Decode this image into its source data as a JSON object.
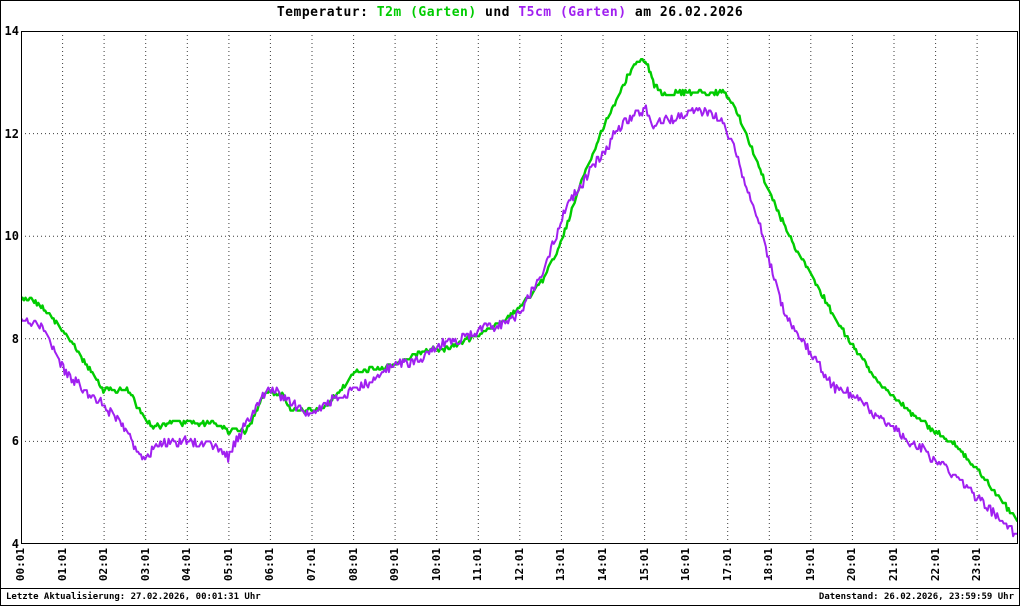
{
  "title": {
    "prefix": "Temperatur: ",
    "series1": "T2m (Garten)",
    "middle": " und ",
    "series2": "T5cm (Garten)",
    "suffix": " am 26.02.2026"
  },
  "footer": {
    "left": "Letzte Aktualisierung: 27.02.2026, 00:01:31 Uhr",
    "right": "Datenstand: 26.02.2026, 23:59:59 Uhr"
  },
  "colors": {
    "t2m": "#00cc00",
    "t5cm": "#a020f0",
    "grid": "#3c3c3c",
    "frame": "#000000",
    "background": "#ffffff"
  },
  "chart_data": {
    "type": "line",
    "title": "Temperatur: T2m (Garten) und T5cm (Garten) am 26.02.2026",
    "xlabel": "",
    "ylabel": "",
    "grid": "dotted",
    "legend_position": "in-title",
    "ylim": [
      4,
      14
    ],
    "xlim_hours": [
      0.0167,
      24
    ],
    "yticks": [
      4,
      6,
      8,
      10,
      12,
      14
    ],
    "xticks": [
      "00:01",
      "01:01",
      "02:01",
      "03:01",
      "04:01",
      "05:01",
      "06:01",
      "07:01",
      "08:01",
      "09:01",
      "10:01",
      "11:01",
      "12:01",
      "13:01",
      "14:01",
      "15:01",
      "16:01",
      "17:01",
      "18:01",
      "19:01",
      "20:01",
      "21:01",
      "22:01",
      "23:01"
    ],
    "x_unit": "hours",
    "y_unit": "degC",
    "series": [
      {
        "name": "T2m (Garten)",
        "color": "#00cc00",
        "width": 2.4,
        "noise": 0.045,
        "points": [
          [
            0.02,
            8.8
          ],
          [
            0.3,
            8.75
          ],
          [
            0.6,
            8.55
          ],
          [
            0.9,
            8.3
          ],
          [
            1.2,
            8.0
          ],
          [
            1.5,
            7.6
          ],
          [
            1.8,
            7.25
          ],
          [
            2.0,
            7.0
          ],
          [
            2.3,
            7.0
          ],
          [
            2.6,
            7.0
          ],
          [
            2.8,
            6.7
          ],
          [
            3.0,
            6.4
          ],
          [
            3.2,
            6.3
          ],
          [
            3.5,
            6.3
          ],
          [
            3.7,
            6.4
          ],
          [
            3.9,
            6.35
          ],
          [
            4.1,
            6.4
          ],
          [
            4.3,
            6.3
          ],
          [
            4.5,
            6.4
          ],
          [
            4.7,
            6.35
          ],
          [
            5.0,
            6.2
          ],
          [
            5.2,
            6.2
          ],
          [
            5.4,
            6.2
          ],
          [
            5.6,
            6.45
          ],
          [
            5.8,
            6.8
          ],
          [
            6.0,
            7.0
          ],
          [
            6.1,
            6.95
          ],
          [
            6.3,
            6.9
          ],
          [
            6.5,
            6.65
          ],
          [
            6.8,
            6.6
          ],
          [
            7.0,
            6.6
          ],
          [
            7.3,
            6.65
          ],
          [
            7.6,
            6.9
          ],
          [
            7.9,
            7.2
          ],
          [
            8.1,
            7.35
          ],
          [
            8.4,
            7.4
          ],
          [
            8.7,
            7.45
          ],
          [
            9.0,
            7.5
          ],
          [
            9.3,
            7.6
          ],
          [
            9.6,
            7.75
          ],
          [
            9.9,
            7.8
          ],
          [
            10.2,
            7.8
          ],
          [
            10.5,
            7.9
          ],
          [
            10.8,
            8.0
          ],
          [
            11.1,
            8.1
          ],
          [
            11.4,
            8.25
          ],
          [
            11.7,
            8.4
          ],
          [
            12.0,
            8.6
          ],
          [
            12.3,
            8.85
          ],
          [
            12.6,
            9.2
          ],
          [
            12.9,
            9.7
          ],
          [
            13.1,
            10.1
          ],
          [
            13.3,
            10.6
          ],
          [
            13.5,
            11.05
          ],
          [
            13.7,
            11.45
          ],
          [
            13.9,
            11.9
          ],
          [
            14.1,
            12.25
          ],
          [
            14.3,
            12.6
          ],
          [
            14.5,
            12.95
          ],
          [
            14.7,
            13.25
          ],
          [
            14.9,
            13.4
          ],
          [
            15.0,
            13.45
          ],
          [
            15.1,
            13.3
          ],
          [
            15.25,
            12.95
          ],
          [
            15.4,
            12.8
          ],
          [
            15.6,
            12.75
          ],
          [
            15.8,
            12.8
          ],
          [
            16.0,
            12.8
          ],
          [
            16.3,
            12.8
          ],
          [
            16.6,
            12.8
          ],
          [
            16.9,
            12.8
          ],
          [
            17.1,
            12.65
          ],
          [
            17.3,
            12.3
          ],
          [
            17.5,
            11.9
          ],
          [
            17.7,
            11.5
          ],
          [
            18.0,
            10.9
          ],
          [
            18.3,
            10.35
          ],
          [
            18.6,
            9.85
          ],
          [
            19.0,
            9.3
          ],
          [
            19.3,
            8.85
          ],
          [
            19.6,
            8.4
          ],
          [
            20.0,
            7.9
          ],
          [
            20.3,
            7.55
          ],
          [
            20.6,
            7.2
          ],
          [
            21.0,
            6.85
          ],
          [
            21.3,
            6.65
          ],
          [
            21.6,
            6.45
          ],
          [
            22.0,
            6.2
          ],
          [
            22.3,
            6.05
          ],
          [
            22.6,
            5.85
          ],
          [
            23.0,
            5.45
          ],
          [
            23.3,
            5.15
          ],
          [
            23.6,
            4.85
          ],
          [
            23.98,
            4.45
          ]
        ]
      },
      {
        "name": "T5cm (Garten)",
        "color": "#a020f0",
        "width": 2.0,
        "noise": 0.09,
        "points": [
          [
            0.02,
            8.35
          ],
          [
            0.3,
            8.3
          ],
          [
            0.5,
            8.25
          ],
          [
            0.7,
            7.95
          ],
          [
            0.9,
            7.6
          ],
          [
            1.1,
            7.35
          ],
          [
            1.4,
            7.1
          ],
          [
            1.7,
            6.9
          ],
          [
            2.0,
            6.7
          ],
          [
            2.3,
            6.5
          ],
          [
            2.6,
            6.15
          ],
          [
            2.8,
            5.8
          ],
          [
            3.0,
            5.65
          ],
          [
            3.2,
            5.85
          ],
          [
            3.4,
            5.95
          ],
          [
            3.7,
            6.0
          ],
          [
            4.0,
            6.0
          ],
          [
            4.3,
            5.95
          ],
          [
            4.6,
            5.95
          ],
          [
            4.8,
            5.8
          ],
          [
            5.0,
            5.7
          ],
          [
            5.2,
            6.0
          ],
          [
            5.4,
            6.3
          ],
          [
            5.6,
            6.55
          ],
          [
            5.8,
            6.85
          ],
          [
            6.0,
            7.0
          ],
          [
            6.2,
            6.95
          ],
          [
            6.4,
            6.8
          ],
          [
            6.6,
            6.7
          ],
          [
            6.8,
            6.6
          ],
          [
            7.0,
            6.6
          ],
          [
            7.3,
            6.7
          ],
          [
            7.6,
            6.85
          ],
          [
            7.9,
            6.95
          ],
          [
            8.2,
            7.1
          ],
          [
            8.5,
            7.2
          ],
          [
            8.8,
            7.4
          ],
          [
            9.1,
            7.5
          ],
          [
            9.4,
            7.55
          ],
          [
            9.7,
            7.65
          ],
          [
            10.0,
            7.85
          ],
          [
            10.3,
            7.95
          ],
          [
            10.6,
            8.0
          ],
          [
            10.9,
            8.1
          ],
          [
            11.2,
            8.25
          ],
          [
            11.4,
            8.2
          ],
          [
            11.7,
            8.35
          ],
          [
            12.0,
            8.5
          ],
          [
            12.3,
            8.9
          ],
          [
            12.6,
            9.4
          ],
          [
            12.9,
            10.0
          ],
          [
            13.1,
            10.5
          ],
          [
            13.3,
            10.8
          ],
          [
            13.5,
            11.0
          ],
          [
            13.7,
            11.3
          ],
          [
            13.9,
            11.5
          ],
          [
            14.1,
            11.7
          ],
          [
            14.3,
            12.0
          ],
          [
            14.5,
            12.2
          ],
          [
            14.7,
            12.3
          ],
          [
            14.9,
            12.4
          ],
          [
            15.05,
            12.45
          ],
          [
            15.2,
            12.1
          ],
          [
            15.35,
            12.25
          ],
          [
            15.5,
            12.3
          ],
          [
            15.7,
            12.25
          ],
          [
            15.9,
            12.35
          ],
          [
            16.1,
            12.4
          ],
          [
            16.3,
            12.45
          ],
          [
            16.5,
            12.4
          ],
          [
            16.7,
            12.35
          ],
          [
            16.9,
            12.2
          ],
          [
            17.1,
            11.9
          ],
          [
            17.3,
            11.4
          ],
          [
            17.5,
            10.9
          ],
          [
            17.7,
            10.4
          ],
          [
            17.9,
            9.9
          ],
          [
            18.1,
            9.3
          ],
          [
            18.3,
            8.7
          ],
          [
            18.5,
            8.3
          ],
          [
            18.7,
            8.1
          ],
          [
            19.0,
            7.75
          ],
          [
            19.3,
            7.35
          ],
          [
            19.6,
            7.05
          ],
          [
            19.9,
            6.95
          ],
          [
            20.2,
            6.8
          ],
          [
            20.5,
            6.55
          ],
          [
            20.8,
            6.35
          ],
          [
            21.1,
            6.2
          ],
          [
            21.4,
            6.0
          ],
          [
            21.7,
            5.85
          ],
          [
            22.0,
            5.6
          ],
          [
            22.3,
            5.45
          ],
          [
            22.6,
            5.25
          ],
          [
            22.9,
            5.0
          ],
          [
            23.2,
            4.75
          ],
          [
            23.5,
            4.55
          ],
          [
            23.75,
            4.35
          ],
          [
            23.98,
            4.2
          ]
        ]
      }
    ]
  }
}
